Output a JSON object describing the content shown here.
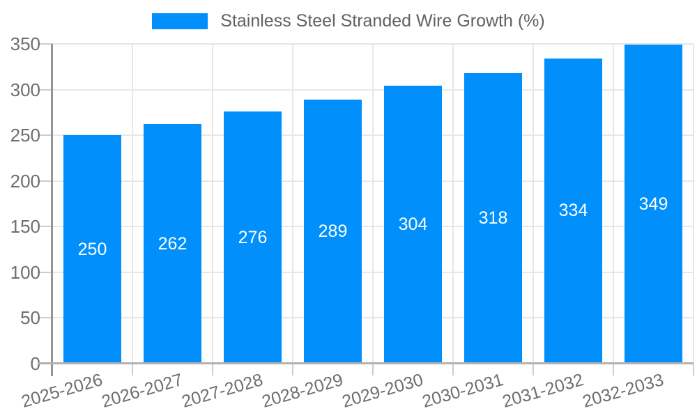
{
  "chart_data": {
    "type": "bar",
    "title": "Stainless Steel Stranded Wire Growth (%)",
    "legend": [
      "Stainless Steel Stranded Wire Growth (%)"
    ],
    "legend_position": "top",
    "categories": [
      "2025-2026",
      "2026-2027",
      "2027-2028",
      "2028-2029",
      "2029-2030",
      "2030-2031",
      "2031-2032",
      "2032-2033"
    ],
    "values": [
      250,
      262,
      276,
      289,
      304,
      318,
      334,
      349
    ],
    "value_labels": [
      "250",
      "262",
      "276",
      "289",
      "304",
      "318",
      "334",
      "349"
    ],
    "xlabel": "",
    "ylabel": "",
    "ylim": [
      0,
      350
    ],
    "y_ticks": [
      0,
      50,
      100,
      150,
      200,
      250,
      300,
      350
    ],
    "grid": true,
    "bar_color": "#008FFB",
    "value_label_color": "#ffffff",
    "axis_label_color": "#6c6e70",
    "gridline_color": "#e7e7e7"
  }
}
